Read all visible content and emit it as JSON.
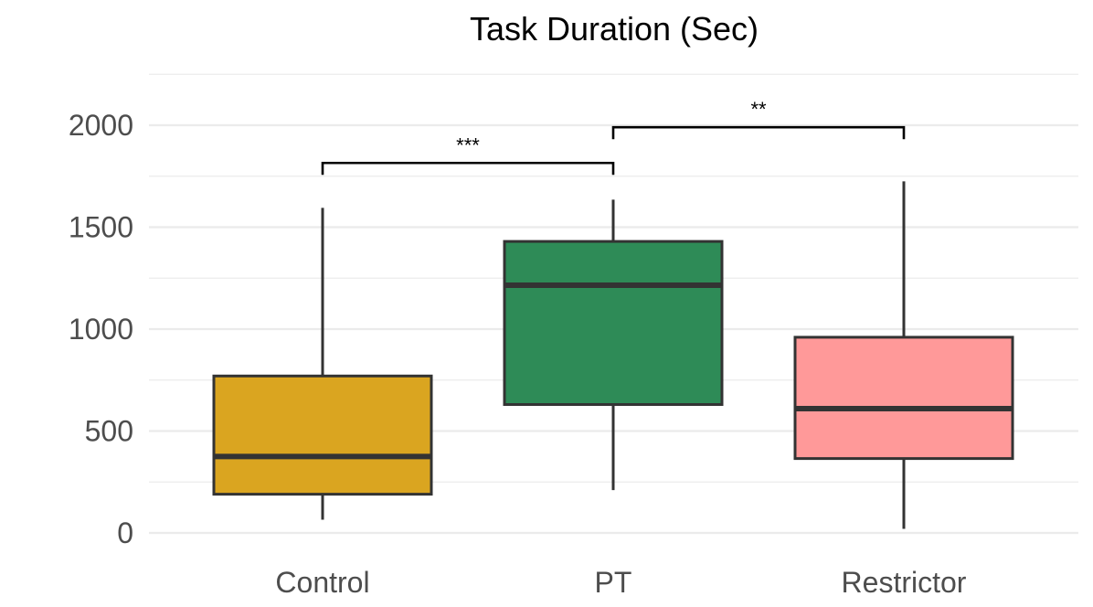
{
  "chart_data": {
    "type": "box",
    "title": "Task Duration (Sec)",
    "xlabel": "",
    "ylabel": "",
    "ylim": [
      -60,
      2250
    ],
    "y_ticks": [
      0,
      500,
      1000,
      1500,
      2000
    ],
    "grid": true,
    "categories": [
      "Control",
      "PT",
      "Restrictor"
    ],
    "boxes": [
      {
        "category": "Control",
        "whisker_low": 65,
        "q1": 190,
        "median": 375,
        "q3": 770,
        "whisker_high": 1595,
        "color": "#DAA520"
      },
      {
        "category": "PT",
        "whisker_low": 210,
        "q1": 630,
        "median": 1215,
        "q3": 1430,
        "whisker_high": 1635,
        "color": "#2E8B57"
      },
      {
        "category": "Restrictor",
        "whisker_low": 20,
        "q1": 365,
        "median": 610,
        "q3": 960,
        "whisker_high": 1725,
        "color": "#FF9999"
      }
    ],
    "significance": [
      {
        "from": "Control",
        "to": "PT",
        "y": 1815,
        "label": "***"
      },
      {
        "from": "PT",
        "to": "Restrictor",
        "y": 1990,
        "label": "**"
      }
    ]
  }
}
